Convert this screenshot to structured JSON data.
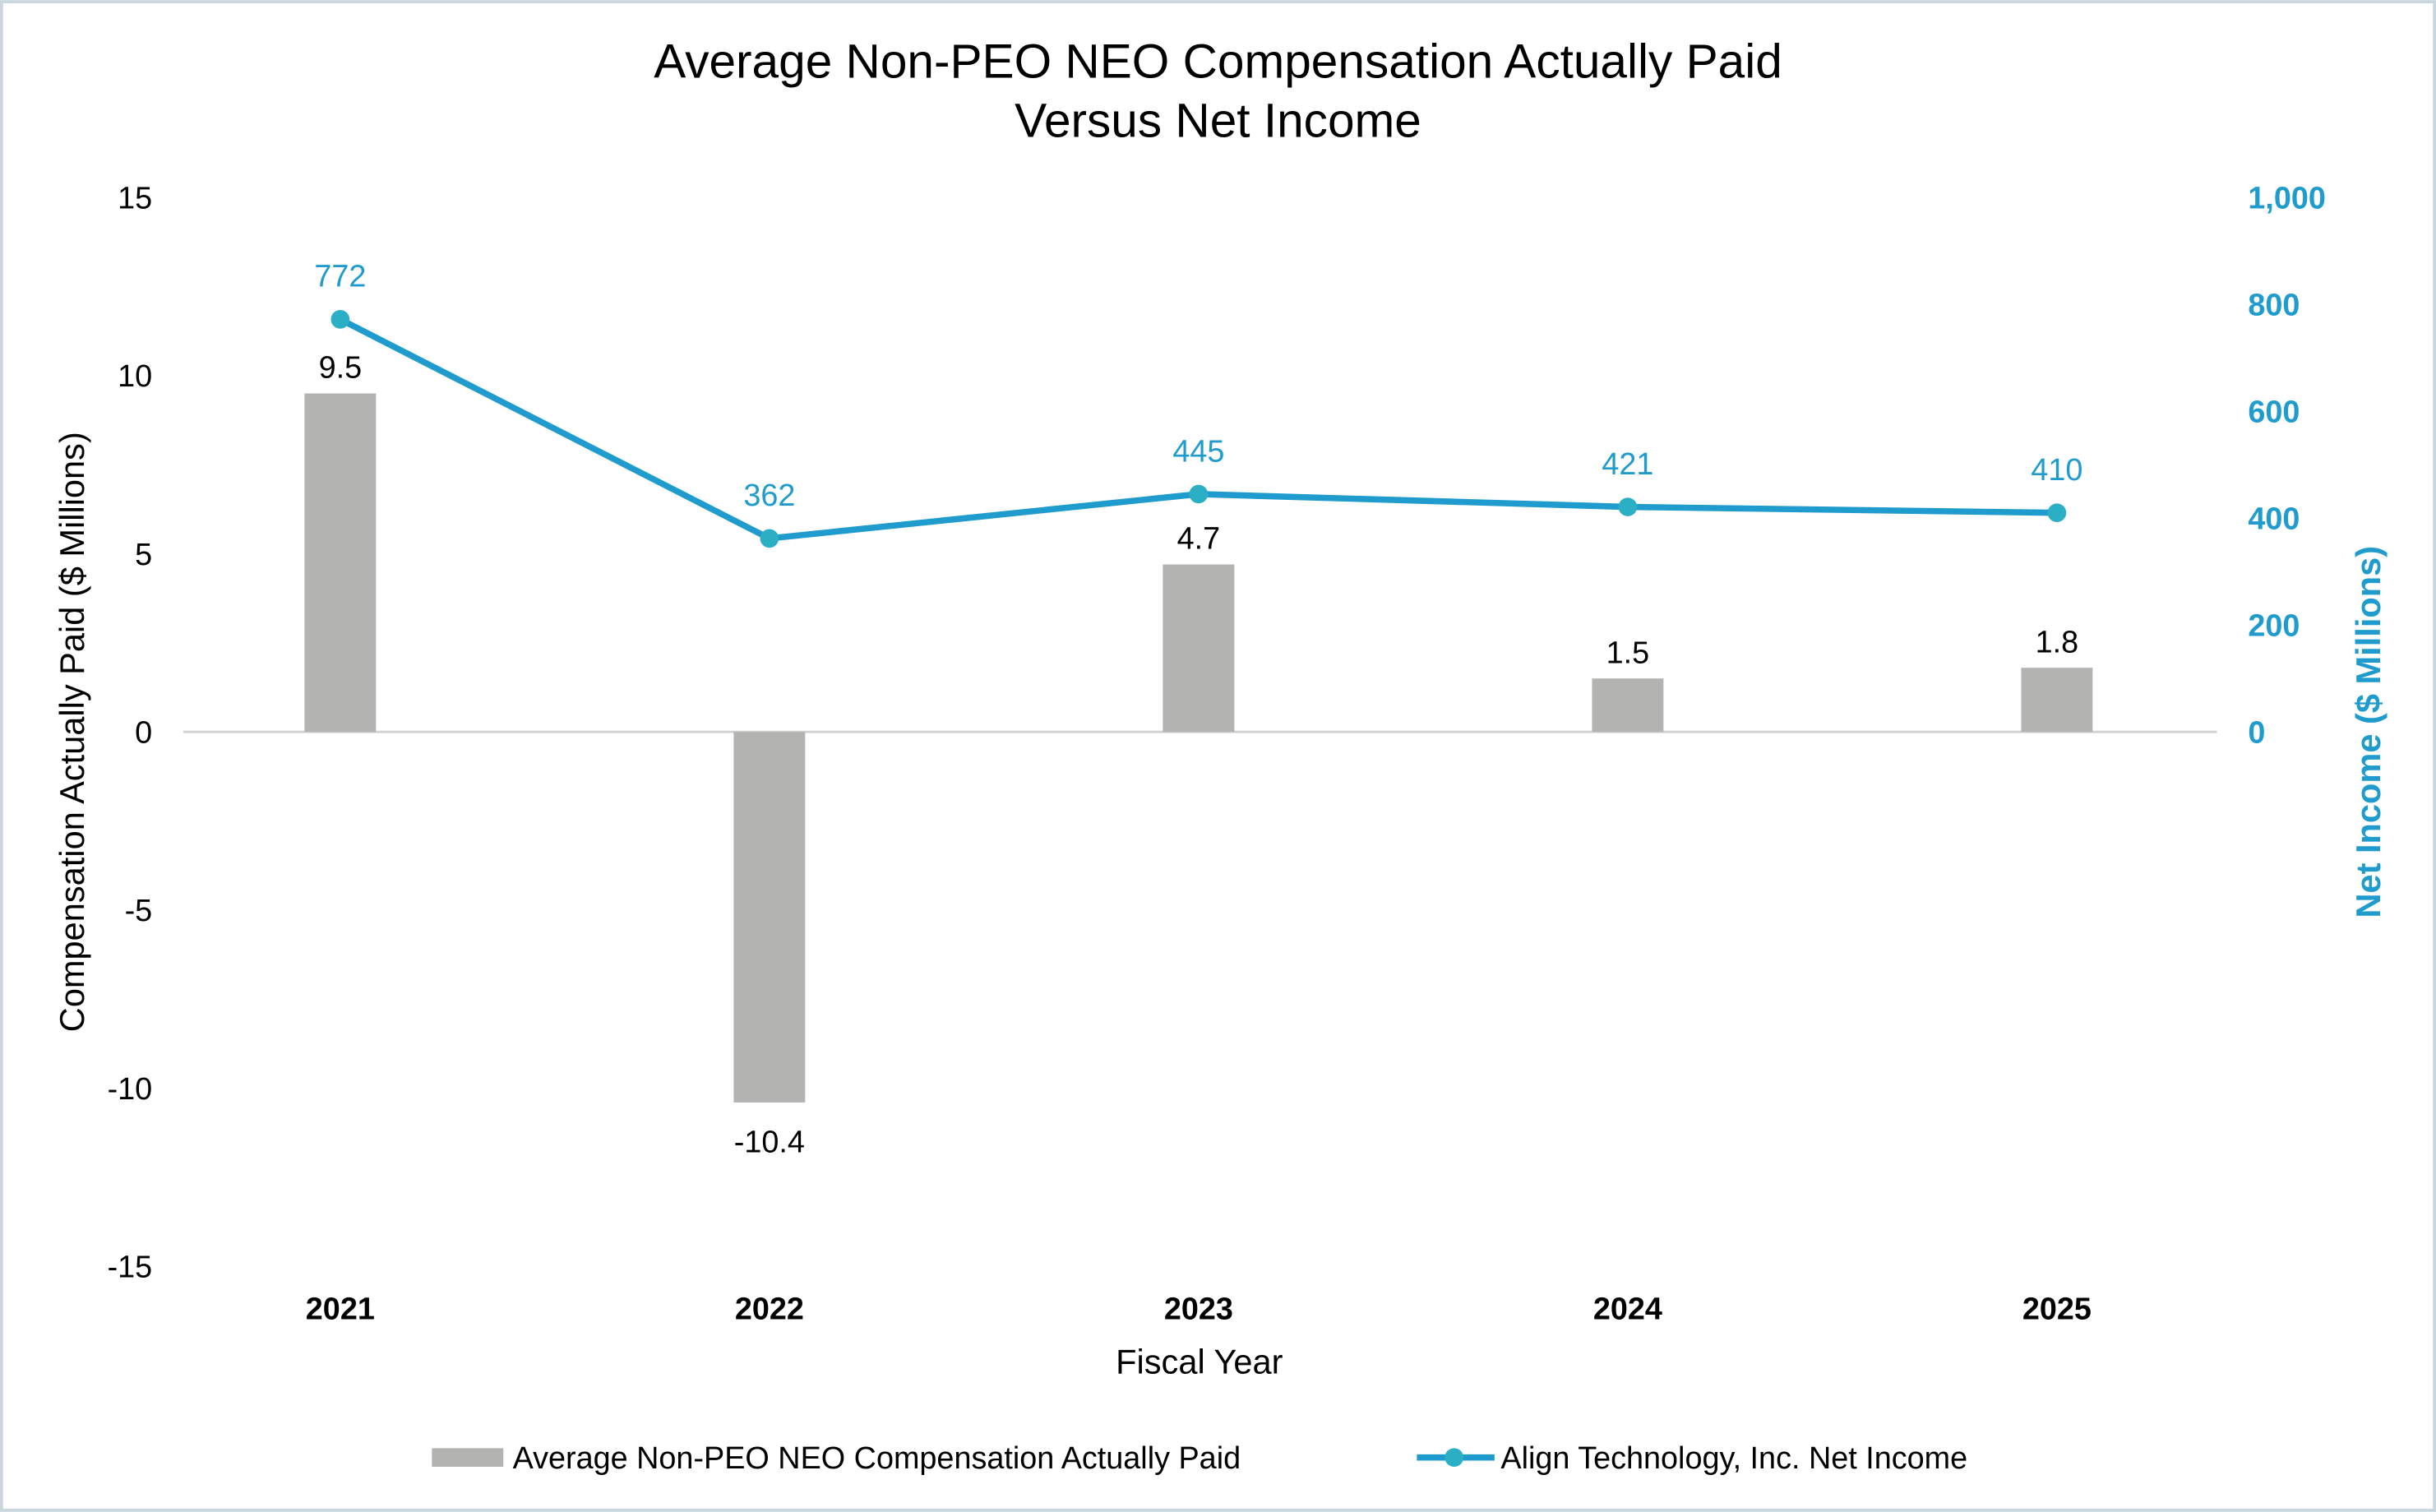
{
  "chart_data": {
    "type": "bar+line",
    "title": [
      "Average Non-PEO NEO Compensation Actually Paid",
      "Versus Net Income"
    ],
    "xlabel": "Fiscal Year",
    "ylabel": "Compensation Actually Paid ($ Millions)",
    "y2label": "Net Income ($ Millions)",
    "categories": [
      "2021",
      "2022",
      "2023",
      "2024",
      "2025"
    ],
    "ylim": [
      -15,
      15
    ],
    "yticks": [
      "15",
      "10",
      "5",
      "0",
      "-5",
      "-10",
      "-15"
    ],
    "y2lim": [
      0,
      1000
    ],
    "y2ticks": [
      "1,000",
      "800",
      "600",
      "400",
      "200",
      "0"
    ],
    "grid": false,
    "legend_position": "bottom",
    "series": [
      {
        "name": "Average Non-PEO NEO Compensation Actually Paid",
        "type": "bar",
        "axis": "left",
        "color": "#b3b3b1",
        "values": [
          9.5,
          -10.4,
          4.7,
          1.5,
          1.8
        ],
        "labels": [
          "9.5",
          "-10.4",
          "4.7",
          "1.5",
          "1.8"
        ]
      },
      {
        "name": "Align Technology, Inc. Net Income",
        "type": "line",
        "axis": "right",
        "color": "#1f9ccd",
        "marker_color": "#2bafc4",
        "values": [
          772,
          362,
          445,
          421,
          410
        ],
        "labels": [
          "772",
          "362",
          "445",
          "421",
          "410"
        ]
      }
    ]
  }
}
